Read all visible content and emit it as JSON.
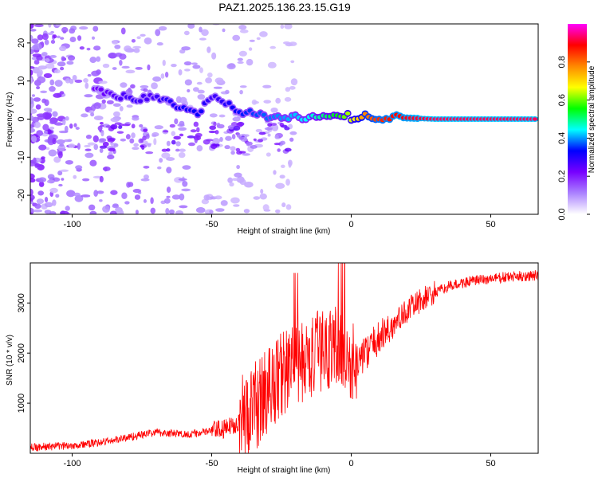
{
  "title": "PAZ1.2025.136.23.15.G19",
  "chart_data": [
    {
      "type": "heatmap",
      "xlabel": "Height of straight line (km)",
      "ylabel": "Frequency (Hz)",
      "xlim": [
        -115,
        67
      ],
      "ylim": [
        -25,
        25
      ],
      "xticks": [
        -100,
        -50,
        0,
        50
      ],
      "yticks": [
        20,
        10,
        0,
        -10,
        -20
      ],
      "colorbar": {
        "label": "Normalized spectral amplitude",
        "range": [
          0,
          1
        ],
        "ticks": [
          0.0,
          0.2,
          0.4,
          0.6,
          0.8
        ],
        "colors": [
          "#ffffff",
          "#ab82ff",
          "#7700ff",
          "#0000ff",
          "#00ffff",
          "#00ff00",
          "#ffff00",
          "#ff8800",
          "#ff0000",
          "#ff00ff"
        ]
      },
      "ridge": [
        {
          "x": -92,
          "f": 7.5,
          "a": 0.22
        },
        {
          "x": -85,
          "f": 6.5,
          "a": 0.25
        },
        {
          "x": -78,
          "f": 5.0,
          "a": 0.28
        },
        {
          "x": -72,
          "f": 6.0,
          "a": 0.26
        },
        {
          "x": -66,
          "f": 4.5,
          "a": 0.3
        },
        {
          "x": -60,
          "f": 3.0,
          "a": 0.32
        },
        {
          "x": -55,
          "f": 1.5,
          "a": 0.33
        },
        {
          "x": -50,
          "f": 6.0,
          "a": 0.27
        },
        {
          "x": -45,
          "f": 4.0,
          "a": 0.3
        },
        {
          "x": -40,
          "f": 2.0,
          "a": 0.34
        },
        {
          "x": -35,
          "f": 1.5,
          "a": 0.36
        },
        {
          "x": -30,
          "f": 0.5,
          "a": 0.38
        },
        {
          "x": -25,
          "f": 1.0,
          "a": 0.4
        },
        {
          "x": -20,
          "f": 0.5,
          "a": 0.42
        },
        {
          "x": -15,
          "f": 0.3,
          "a": 0.45
        },
        {
          "x": -10,
          "f": 0.5,
          "a": 0.5
        },
        {
          "x": -5,
          "f": 1.5,
          "a": 0.55
        },
        {
          "x": 0,
          "f": 0.5,
          "a": 0.65
        },
        {
          "x": 5,
          "f": 0.7,
          "a": 0.78
        },
        {
          "x": 10,
          "f": 0.5,
          "a": 0.85
        },
        {
          "x": 15,
          "f": 0.5,
          "a": 0.88
        },
        {
          "x": 20,
          "f": 0.3,
          "a": 0.9
        },
        {
          "x": 30,
          "f": 0.0,
          "a": 0.93
        },
        {
          "x": 67,
          "f": 0.0,
          "a": 0.93
        }
      ]
    },
    {
      "type": "line",
      "xlabel": "Height of straight line (km)",
      "ylabel": "SNR (10 * v/v)",
      "xlim": [
        -115,
        67
      ],
      "ylim": [
        0,
        3800
      ],
      "xticks": [
        -100,
        -50,
        0,
        50
      ],
      "yticks": [
        1000,
        2000,
        3000
      ],
      "series": [
        {
          "color": "#ff0000",
          "x": [
            -115,
            -110,
            -105,
            -100,
            -95,
            -90,
            -85,
            -80,
            -75,
            -70,
            -65,
            -60,
            -55,
            -50,
            -45,
            -40,
            -35,
            -30,
            -25,
            -20,
            -15,
            -10,
            -5,
            0,
            5,
            10,
            15,
            20,
            25,
            30,
            35,
            40,
            45,
            50,
            55,
            60,
            67
          ],
          "values": [
            120,
            130,
            140,
            160,
            180,
            220,
            260,
            320,
            370,
            420,
            400,
            380,
            400,
            450,
            480,
            650,
            900,
            1250,
            1600,
            1750,
            1850,
            2100,
            2150,
            1700,
            2000,
            2300,
            2550,
            2850,
            3050,
            3200,
            3330,
            3400,
            3450,
            3480,
            3510,
            3530,
            3550
          ]
        }
      ]
    }
  ]
}
